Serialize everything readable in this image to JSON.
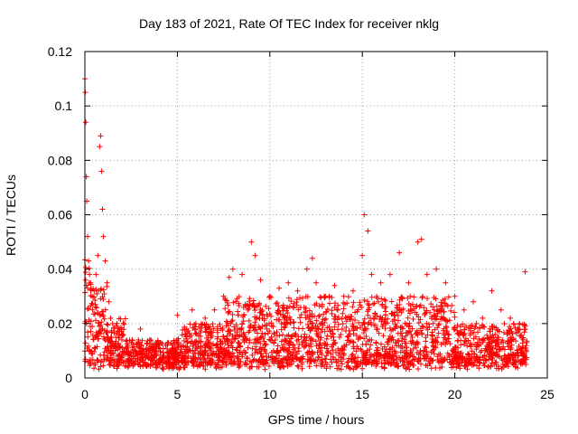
{
  "chart_data": {
    "type": "scatter",
    "title": "Day 183 of 2021, Rate Of TEC Index for receiver nklg",
    "xlabel": "GPS time / hours",
    "ylabel": "ROTI / TECUs",
    "xlim": [
      0,
      25
    ],
    "ylim": [
      0,
      0.12
    ],
    "xticks": [
      "0",
      "5",
      "10",
      "15",
      "20",
      "25"
    ],
    "yticks": [
      "0",
      "0.02",
      "0.04",
      "0.06",
      "0.08",
      "0.1",
      "0.12"
    ],
    "grid": true,
    "marker": "+",
    "color": "#ff0000",
    "x": [
      0.0,
      0.02,
      0.05,
      0.08,
      0.1,
      0.15,
      0.2,
      0.25,
      0.3,
      0.4,
      0.5,
      0.6,
      0.7,
      0.8,
      0.85,
      0.9,
      0.95,
      1.0,
      1.1,
      1.2,
      1.3,
      1.5,
      1.8,
      2.0,
      2.5,
      3.0,
      3.5,
      4.0,
      4.5,
      5.0,
      5.5,
      5.8,
      6.0,
      6.5,
      7.0,
      7.5,
      7.8,
      8.0,
      8.5,
      9.0,
      9.2,
      9.5,
      10.0,
      10.5,
      11.0,
      11.5,
      12.0,
      12.3,
      12.5,
      13.0,
      13.5,
      14.0,
      14.5,
      15.0,
      15.1,
      15.3,
      15.5,
      16.0,
      16.5,
      17.0,
      17.5,
      18.0,
      18.2,
      18.5,
      19.0,
      19.5,
      20.0,
      20.5,
      21.0,
      21.5,
      22.0,
      22.5,
      23.0,
      23.5,
      23.8
    ],
    "y": [
      0.11,
      0.105,
      0.094,
      0.074,
      0.065,
      0.052,
      0.043,
      0.038,
      0.035,
      0.03,
      0.032,
      0.038,
      0.045,
      0.085,
      0.089,
      0.076,
      0.062,
      0.052,
      0.043,
      0.035,
      0.028,
      0.02,
      0.016,
      0.014,
      0.013,
      0.018,
      0.014,
      0.012,
      0.013,
      0.023,
      0.018,
      0.025,
      0.02,
      0.022,
      0.025,
      0.03,
      0.037,
      0.04,
      0.038,
      0.05,
      0.045,
      0.036,
      0.03,
      0.033,
      0.035,
      0.032,
      0.04,
      0.044,
      0.035,
      0.03,
      0.034,
      0.03,
      0.032,
      0.045,
      0.06,
      0.054,
      0.038,
      0.035,
      0.038,
      0.046,
      0.035,
      0.05,
      0.051,
      0.038,
      0.04,
      0.035,
      0.03,
      0.025,
      0.028,
      0.022,
      0.032,
      0.025,
      0.022,
      0.02,
      0.039
    ]
  }
}
